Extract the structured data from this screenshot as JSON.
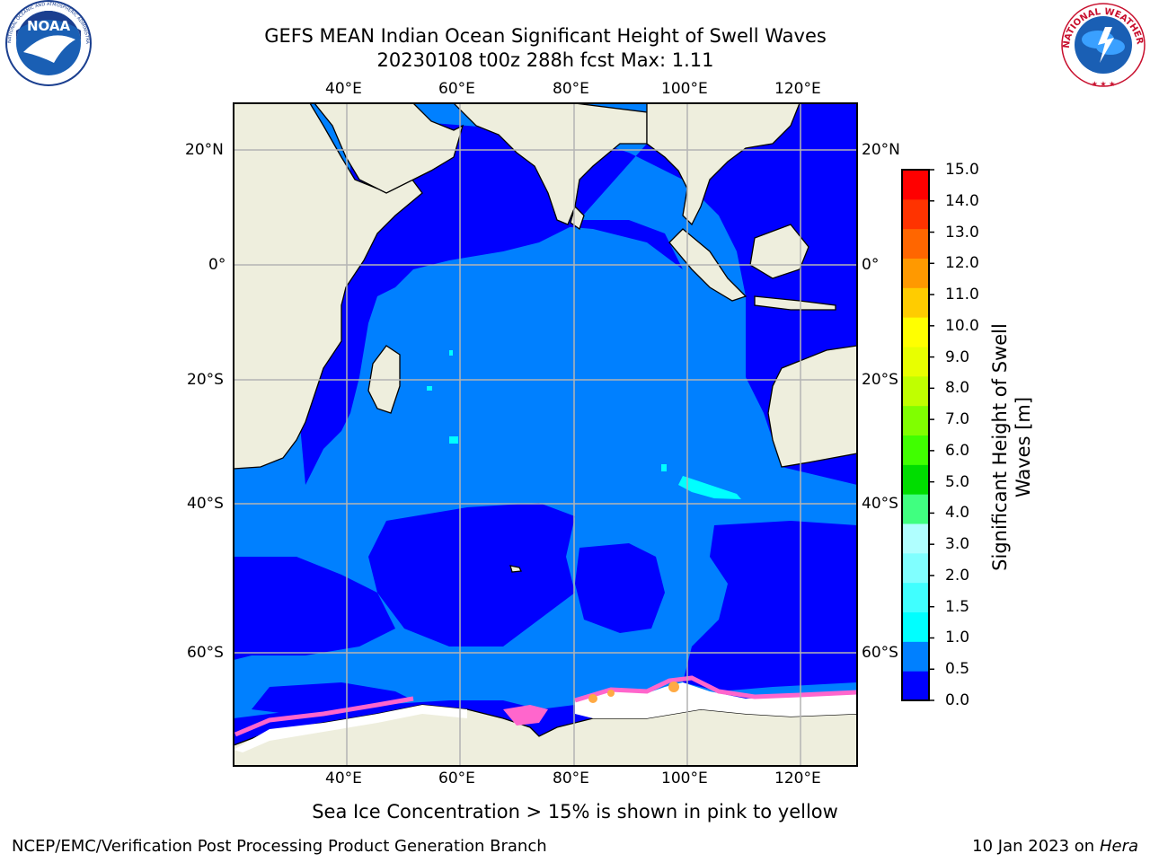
{
  "header": {
    "title_line1": "GEFS MEAN Indian Ocean Significant Height of Swell Waves",
    "title_line2": "20230108 t00z 288h fcst   Max: 1.11"
  },
  "logos": {
    "left_text": "NOAA",
    "left_ring_text": "NATIONAL OCEANIC AND ATMOSPHERIC ADMINISTRATION · U.S. DEPARTMENT OF COMMERCE",
    "right_ring_text": "NATIONAL WEATHER SERVICE"
  },
  "map": {
    "lon_range": [
      20,
      130
    ],
    "lat_range": [
      -73,
      27
    ],
    "lon_ticks": [
      "40°E",
      "60°E",
      "80°E",
      "100°E",
      "120°E"
    ],
    "lat_ticks": [
      "20°N",
      "0°",
      "20°S",
      "40°S",
      "60°S"
    ],
    "grid": true,
    "colors": {
      "land": "#eeeedd",
      "band_0_0p5": "#0000ff",
      "band_0p5_1": "#0080ff",
      "band_1_1p5": "#00ffff",
      "sea_ice": "#ff66cc",
      "ice_shelf": "#ffffff",
      "grid": "#b4b4b4"
    }
  },
  "colorbar": {
    "title_line1": "Significant Height of Swell",
    "title_line2": "Waves [m]",
    "tick_labels": [
      "0.0",
      "0.5",
      "1.0",
      "1.5",
      "2.0",
      "3.0",
      "4.0",
      "5.0",
      "6.0",
      "7.0",
      "8.0",
      "9.0",
      "10.0",
      "11.0",
      "12.0",
      "13.0",
      "14.0",
      "15.0"
    ],
    "colors": [
      "#0000ff",
      "#0080ff",
      "#00ffff",
      "#40ffff",
      "#80ffff",
      "#b0ffff",
      "#40ff80",
      "#00dd00",
      "#40ff00",
      "#80ff00",
      "#c0ff00",
      "#e8ff00",
      "#ffff00",
      "#ffcc00",
      "#ff9900",
      "#ff6600",
      "#ff3300",
      "#ff0000"
    ]
  },
  "footnote": "Sea Ice Concentration > 15% is shown in pink to yellow",
  "footer": {
    "left": "NCEP/EMC/Verification Post Processing Product Generation Branch",
    "right_prefix": "10 Jan 2023 on ",
    "right_host": "Hera"
  }
}
